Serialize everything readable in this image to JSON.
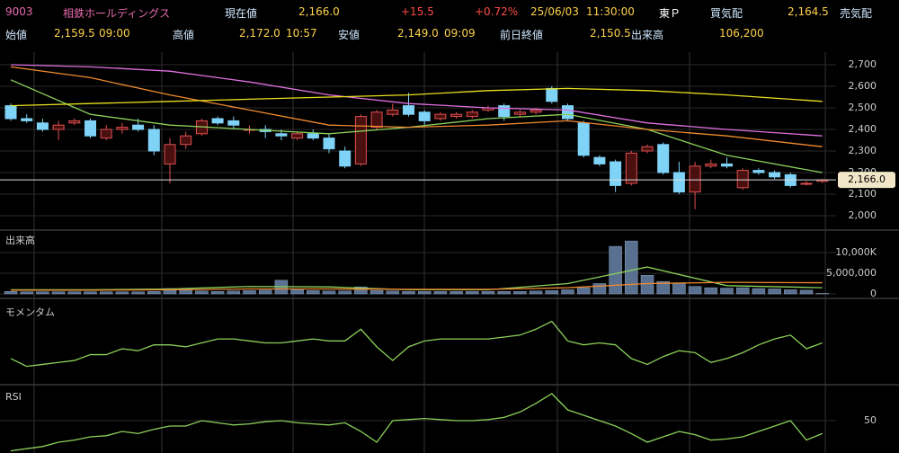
{
  "header": {
    "code": "9003",
    "name": "相鉄ホールディングス",
    "price_label": "現在値",
    "price": "2,166.0",
    "change": "+15.5",
    "change_pct": "+0.72%",
    "date": "25/06/03",
    "time": "11:30:00",
    "market": "東Ｐ",
    "bid_label": "買気配",
    "bid": "2,164.5",
    "ask_label": "売気配",
    "open_label": "始値",
    "open": "2,159.5",
    "open_time": "09:00",
    "high_label": "高値",
    "high": "2,172.0",
    "high_time": "10:57",
    "low_label": "安値",
    "low": "2,149.0",
    "low_time": "09:09",
    "prev_label": "前日終値",
    "prev": "2,150.5",
    "volume_label": "出来高",
    "volume": "106,200"
  },
  "chart_data": [
    {
      "type": "candlestick",
      "up_color": "#e05050",
      "down_color": "#7fd3f7",
      "open": [
        2510,
        2450,
        2430,
        2400,
        2430,
        2440,
        2360,
        2400,
        2420,
        2400,
        2240,
        2330,
        2380,
        2450,
        2440,
        2400,
        2400,
        2380,
        2360,
        2380,
        2360,
        2300,
        2240,
        2410,
        2470,
        2510,
        2480,
        2450,
        2460,
        2460,
        2490,
        2510,
        2470,
        2480,
        2590,
        2510,
        2430,
        2270,
        2250,
        2150,
        2300,
        2330,
        2200,
        2110,
        2230,
        2240,
        2130,
        2210,
        2200,
        2190,
        2150,
        2160
      ],
      "high": [
        2520,
        2470,
        2450,
        2440,
        2450,
        2450,
        2420,
        2430,
        2450,
        2420,
        2360,
        2390,
        2450,
        2460,
        2460,
        2420,
        2420,
        2400,
        2390,
        2400,
        2380,
        2320,
        2470,
        2490,
        2520,
        2570,
        2490,
        2480,
        2480,
        2490,
        2510,
        2520,
        2490,
        2500,
        2600,
        2520,
        2440,
        2280,
        2260,
        2300,
        2330,
        2340,
        2250,
        2250,
        2260,
        2270,
        2220,
        2220,
        2210,
        2200,
        2160,
        2170
      ],
      "low": [
        2440,
        2430,
        2390,
        2350,
        2420,
        2360,
        2350,
        2380,
        2390,
        2280,
        2150,
        2310,
        2370,
        2420,
        2400,
        2380,
        2360,
        2350,
        2350,
        2350,
        2290,
        2220,
        2230,
        2400,
        2460,
        2460,
        2420,
        2440,
        2450,
        2450,
        2480,
        2440,
        2460,
        2470,
        2520,
        2440,
        2270,
        2230,
        2110,
        2140,
        2290,
        2190,
        2100,
        2030,
        2220,
        2220,
        2120,
        2190,
        2170,
        2130,
        2140,
        2150
      ],
      "close": [
        2450,
        2440,
        2400,
        2420,
        2440,
        2370,
        2400,
        2410,
        2400,
        2300,
        2330,
        2370,
        2440,
        2430,
        2420,
        2400,
        2390,
        2370,
        2380,
        2360,
        2310,
        2230,
        2460,
        2480,
        2490,
        2470,
        2440,
        2470,
        2470,
        2480,
        2500,
        2460,
        2480,
        2490,
        2530,
        2450,
        2280,
        2240,
        2140,
        2290,
        2320,
        2200,
        2110,
        2230,
        2240,
        2230,
        2210,
        2200,
        2180,
        2140,
        2150,
        2166
      ],
      "lines": [
        {
          "color": "#8bd15a",
          "x": [
            0,
            5,
            10,
            15,
            20,
            25,
            30,
            35,
            40,
            45,
            51
          ],
          "values": [
            2630,
            2470,
            2420,
            2400,
            2380,
            2410,
            2450,
            2470,
            2400,
            2280,
            2200
          ]
        },
        {
          "color": "#f08a30",
          "x": [
            0,
            5,
            10,
            15,
            20,
            25,
            30,
            35,
            40,
            45,
            51
          ],
          "values": [
            2690,
            2640,
            2560,
            2490,
            2420,
            2410,
            2420,
            2440,
            2400,
            2370,
            2320
          ]
        },
        {
          "color": "#e070e0",
          "x": [
            0,
            5,
            10,
            15,
            20,
            25,
            30,
            35,
            40,
            45,
            51
          ],
          "values": [
            2700,
            2690,
            2670,
            2620,
            2560,
            2520,
            2500,
            2490,
            2430,
            2400,
            2370
          ]
        },
        {
          "color": "#e8e020",
          "x": [
            0,
            5,
            10,
            15,
            20,
            25,
            30,
            35,
            40,
            45,
            51
          ],
          "values": [
            2510,
            2520,
            2530,
            2540,
            2550,
            2560,
            2580,
            2590,
            2580,
            2560,
            2530
          ]
        }
      ],
      "current_price": {
        "value": 2166,
        "label": "2,166.0"
      },
      "ylim": [
        1940,
        2760
      ],
      "yticks": [
        {
          "value": 2000,
          "label": "2,000"
        },
        {
          "value": 2100,
          "label": "2,100"
        },
        {
          "value": 2200,
          "label": "2,200"
        },
        {
          "value": 2300,
          "label": "2,300"
        },
        {
          "value": 2400,
          "label": "2,400"
        },
        {
          "value": 2500,
          "label": "2,500"
        },
        {
          "value": 2600,
          "label": "2,600"
        },
        {
          "value": 2700,
          "label": "2,700"
        }
      ]
    },
    {
      "type": "bar",
      "title": "出来高",
      "color": "#5a7090",
      "values": [
        600000,
        500000,
        500000,
        500000,
        500000,
        500000,
        500000,
        500000,
        500000,
        600000,
        1300000,
        1100000,
        700000,
        600000,
        700000,
        800000,
        900000,
        3300000,
        1100000,
        800000,
        700000,
        700000,
        1700000,
        800000,
        700000,
        600000,
        600000,
        600000,
        600000,
        600000,
        600000,
        600000,
        600000,
        700000,
        800000,
        1000000,
        1500000,
        2500000,
        11500000,
        12800000,
        4500000,
        3000000,
        2600000,
        1800000,
        1500000,
        1400000,
        1500000,
        1300000,
        1200000,
        1000000,
        900000,
        106200
      ],
      "lines": [
        {
          "color": "#8bd15a",
          "x": [
            0,
            5,
            10,
            15,
            20,
            25,
            30,
            35,
            40,
            45,
            51
          ],
          "values": [
            1000000,
            1000000,
            1200000,
            1800000,
            1700000,
            1000000,
            1000000,
            2500000,
            6500000,
            2000000,
            1500000
          ]
        },
        {
          "color": "#f08a30",
          "x": [
            0,
            5,
            10,
            15,
            20,
            25,
            30,
            35,
            40,
            45,
            51
          ],
          "values": [
            900000,
            900000,
            1000000,
            1200000,
            1200000,
            1100000,
            1100000,
            1500000,
            2500000,
            2800000,
            2700000
          ]
        }
      ],
      "ylim": [
        0,
        15000000
      ],
      "yticks": [
        0,
        {
          "value": 5000000,
          "label": "5,000,000"
        },
        {
          "value": 10000000,
          "label": "10,000K"
        }
      ]
    },
    {
      "type": "line",
      "title": "モメンタム",
      "color": "#8bd15a",
      "values": [
        -40,
        -60,
        -55,
        -50,
        -45,
        -30,
        -30,
        -15,
        -20,
        -5,
        -5,
        -10,
        0,
        10,
        10,
        5,
        0,
        0,
        5,
        10,
        5,
        5,
        35,
        -10,
        -45,
        -10,
        5,
        10,
        10,
        10,
        10,
        15,
        20,
        35,
        55,
        5,
        -5,
        0,
        -5,
        -40,
        -55,
        -35,
        -20,
        -25,
        -50,
        -40,
        -25,
        -5,
        10,
        20,
        -15,
        0
      ],
      "ylim": [
        -100,
        100
      ],
      "yticks": []
    },
    {
      "type": "line",
      "title": "RSI",
      "color": "#8bd15a",
      "values": [
        22,
        24,
        26,
        30,
        32,
        35,
        36,
        40,
        38,
        42,
        45,
        45,
        50,
        48,
        46,
        47,
        49,
        50,
        48,
        47,
        46,
        48,
        40,
        30,
        50,
        51,
        52,
        51,
        50,
        50,
        51,
        53,
        58,
        66,
        75,
        60,
        55,
        50,
        45,
        38,
        30,
        35,
        40,
        37,
        32,
        33,
        35,
        40,
        45,
        50,
        32,
        38
      ],
      "ylim": [
        20,
        80
      ],
      "yticks": [
        50
      ]
    }
  ]
}
